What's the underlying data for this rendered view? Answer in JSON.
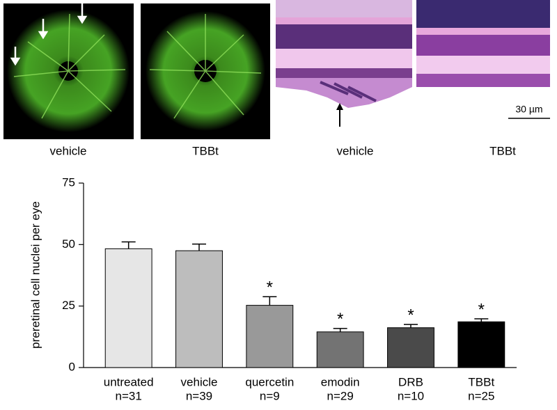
{
  "panels": {
    "captions": [
      "vehicle",
      "TBBt",
      "vehicle",
      "TBBt"
    ],
    "scale_bar": "30 µm"
  },
  "chart_data": {
    "type": "bar",
    "ylabel": "preretinal cell nuclei per eye",
    "categories": [
      "untreated",
      "vehicle",
      "quercetin",
      "emodin",
      "DRB",
      "TBBt"
    ],
    "sample_sizes": [
      "n=31",
      "n=39",
      "n=9",
      "n=29",
      "n=10",
      "n=25"
    ],
    "values": [
      48.3,
      47.5,
      25.3,
      14.5,
      16.2,
      18.6
    ],
    "errors": [
      2.8,
      2.7,
      3.5,
      1.4,
      1.3,
      1.2
    ],
    "annotations": [
      null,
      null,
      "*",
      "*",
      "*",
      "*"
    ],
    "colors": [
      "#e6e6e6",
      "#bdbdbd",
      "#999999",
      "#737373",
      "#4a4a4a",
      "#000000"
    ],
    "ylim": [
      0,
      75
    ],
    "yticks": [
      0,
      25,
      50,
      75
    ]
  }
}
